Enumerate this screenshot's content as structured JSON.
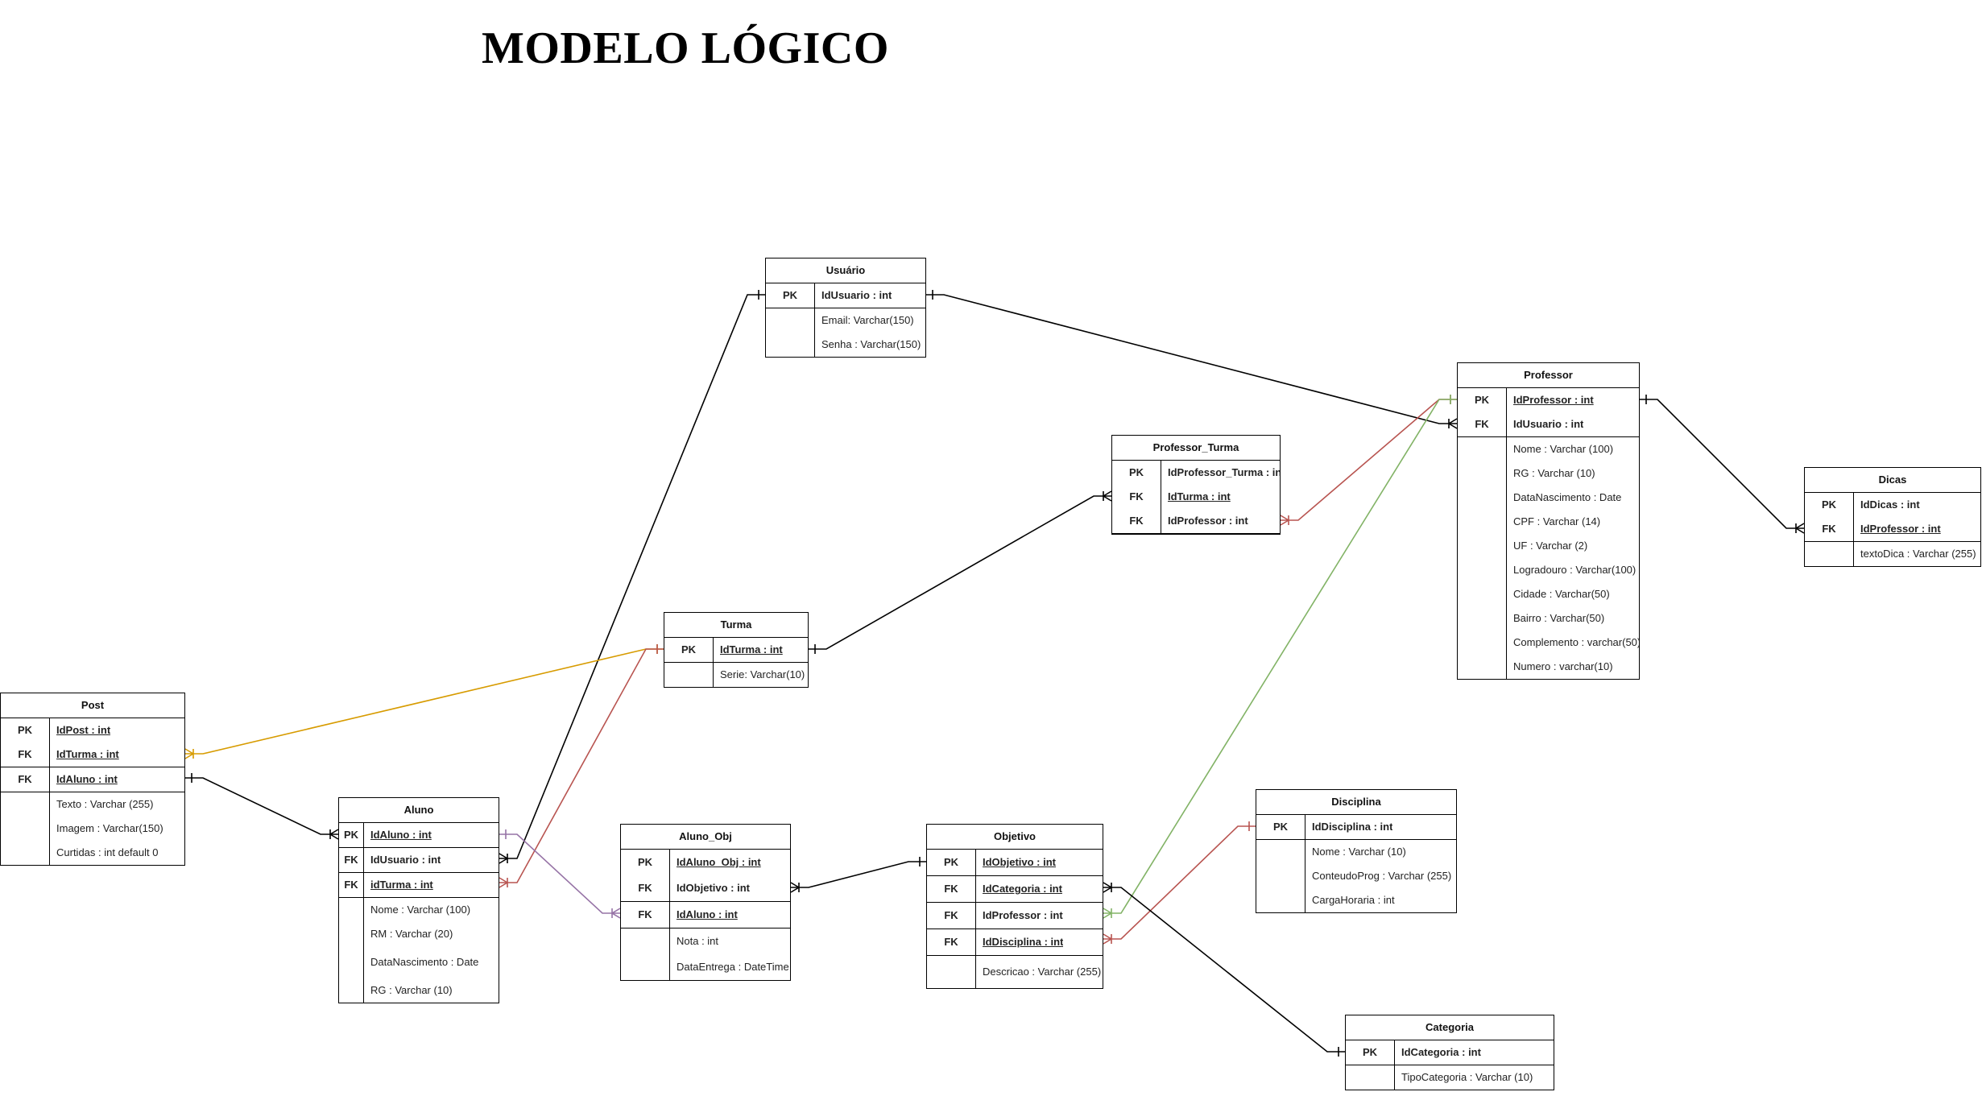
{
  "title": "MODELO LÓGICO",
  "entities": [
    {
      "id": "usuario",
      "name": "Usuário",
      "rows": [
        {
          "key": "PK",
          "text": "IdUsuario : int",
          "bold": true
        },
        {
          "key": "",
          "text": "Email: Varchar(150)"
        },
        {
          "key": "",
          "text": "Senha : Varchar(150)"
        }
      ]
    },
    {
      "id": "professor",
      "name": "Professor",
      "rows": [
        {
          "key": "PK",
          "text": "IdProfessor : int",
          "bold": true,
          "underline": true
        },
        {
          "key": "FK",
          "text": "IdUsuario : int",
          "bold": true
        },
        {
          "key": "",
          "text": "Nome : Varchar (100)"
        },
        {
          "key": "",
          "text": "RG : Varchar (10)"
        },
        {
          "key": "",
          "text": "DataNascimento : Date"
        },
        {
          "key": "",
          "text": "CPF : Varchar (14)"
        },
        {
          "key": "",
          "text": "UF : Varchar (2)"
        },
        {
          "key": "",
          "text": "Logradouro : Varchar(100)"
        },
        {
          "key": "",
          "text": "Cidade : Varchar(50)"
        },
        {
          "key": "",
          "text": "Bairro : Varchar(50)"
        },
        {
          "key": "",
          "text": "Complemento : varchar(50)"
        },
        {
          "key": "",
          "text": "Numero : varchar(10)"
        }
      ]
    },
    {
      "id": "professor_turma",
      "name": "Professor_Turma",
      "rows": [
        {
          "key": "PK",
          "text": "IdProfessor_Turma : int",
          "bold": true
        },
        {
          "key": "FK",
          "text": "IdTurma : int",
          "bold": true,
          "underline": true
        },
        {
          "key": "FK",
          "text": "IdProfessor : int",
          "bold": true
        }
      ]
    },
    {
      "id": "dicas",
      "name": "Dicas",
      "rows": [
        {
          "key": "PK",
          "text": "IdDicas : int",
          "bold": true
        },
        {
          "key": "FK",
          "text": "IdProfessor : int",
          "bold": true,
          "underline": true
        },
        {
          "key": "",
          "text": "textoDica : Varchar (255)"
        }
      ]
    },
    {
      "id": "turma",
      "name": "Turma",
      "rows": [
        {
          "key": "PK",
          "text": "IdTurma : int",
          "bold": true,
          "underline": true
        },
        {
          "key": "",
          "text": "Serie: Varchar(10)"
        }
      ]
    },
    {
      "id": "post",
      "name": "Post",
      "rows": [
        {
          "key": "PK",
          "text": "IdPost : int",
          "bold": true,
          "underline": true
        },
        {
          "key": "FK",
          "text": "IdTurma : int",
          "bold": true,
          "underline": true
        },
        {
          "key": "FK",
          "text": "IdAluno : int",
          "bold": true,
          "underline": true
        },
        {
          "key": "",
          "text": "Texto : Varchar (255)"
        },
        {
          "key": "",
          "text": "Imagem : Varchar(150)"
        },
        {
          "key": "",
          "text": "Curtidas : int  default 0"
        }
      ]
    },
    {
      "id": "aluno",
      "name": "Aluno",
      "rows": [
        {
          "key": "PK",
          "text": "IdAluno : int",
          "bold": true,
          "underline": true
        },
        {
          "key": "FK",
          "text": "IdUsuario : int",
          "bold": true
        },
        {
          "key": "FK",
          "text": "idTurma : int",
          "bold": true,
          "underline": true
        },
        {
          "key": "",
          "text": "Nome : Varchar (100)"
        },
        {
          "key": "",
          "text": "RM : Varchar (20)"
        },
        {
          "key": "",
          "text": "DataNascimento : Date"
        },
        {
          "key": "",
          "text": "RG : Varchar (10)"
        }
      ]
    },
    {
      "id": "aluno_obj",
      "name": "Aluno_Obj",
      "rows": [
        {
          "key": "PK",
          "text": "IdAluno_Obj : int",
          "bold": true,
          "underline": true
        },
        {
          "key": "FK",
          "text": "IdObjetivo : int",
          "bold": true
        },
        {
          "key": "FK",
          "text": "IdAluno : int",
          "bold": true,
          "underline": true
        },
        {
          "key": "",
          "text": "Nota : int"
        },
        {
          "key": "",
          "text": "DataEntrega : DateTime"
        }
      ]
    },
    {
      "id": "objetivo",
      "name": "Objetivo",
      "rows": [
        {
          "key": "PK",
          "text": "IdObjetivo : int",
          "bold": true,
          "underline": true
        },
        {
          "key": "FK",
          "text": "IdCategoria : int",
          "bold": true,
          "underline": true
        },
        {
          "key": "FK",
          "text": "IdProfessor : int",
          "bold": true
        },
        {
          "key": "FK",
          "text": "IdDisciplina : int",
          "bold": true,
          "underline": true
        },
        {
          "key": "",
          "text": "Descricao : Varchar (255)"
        }
      ]
    },
    {
      "id": "disciplina",
      "name": "Disciplina",
      "rows": [
        {
          "key": "PK",
          "text": "IdDisciplina : int",
          "bold": true
        },
        {
          "key": "",
          "text": "Nome : Varchar (10)"
        },
        {
          "key": "",
          "text": "ConteudoProg : Varchar (255)"
        },
        {
          "key": "",
          "text": "CargaHoraria : int"
        }
      ]
    },
    {
      "id": "categoria",
      "name": "Categoria",
      "rows": [
        {
          "key": "PK",
          "text": "IdCategoria : int",
          "bold": true
        },
        {
          "key": "",
          "text": "TipoCategoria : Varchar (10)"
        }
      ]
    }
  ],
  "relationships": [
    {
      "from": "usuario.IdUsuario",
      "to": "professor.IdUsuario",
      "color": "#000000"
    },
    {
      "from": "usuario.IdUsuario",
      "to": "aluno.IdUsuario",
      "color": "#000000"
    },
    {
      "from": "professor.IdProfessor",
      "to": "dicas.IdProfessor",
      "color": "#000000"
    },
    {
      "from": "professor.IdProfessor",
      "to": "professor_turma.IdProfessor",
      "color": "#b85450"
    },
    {
      "from": "turma.IdTurma",
      "to": "professor_turma.IdTurma",
      "color": "#000000"
    },
    {
      "from": "turma.IdTurma",
      "to": "post.IdTurma",
      "color": "#d79b00"
    },
    {
      "from": "turma.IdTurma",
      "to": "aluno.idTurma",
      "color": "#b85450"
    },
    {
      "from": "post.IdAluno",
      "to": "aluno.IdAluno",
      "color": "#000000"
    },
    {
      "from": "aluno.IdAluno",
      "to": "aluno_obj.IdAluno",
      "color": "#9673a6"
    },
    {
      "from": "objetivo.IdObjetivo",
      "to": "aluno_obj.IdObjetivo",
      "color": "#000000"
    },
    {
      "from": "professor.IdProfessor",
      "to": "objetivo.IdProfessor",
      "color": "#82b366"
    },
    {
      "from": "disciplina.IdDisciplina",
      "to": "objetivo.IdDisciplina",
      "color": "#b85450"
    },
    {
      "from": "categoria.IdCategoria",
      "to": "objetivo.IdCategoria",
      "color": "#000000"
    }
  ]
}
